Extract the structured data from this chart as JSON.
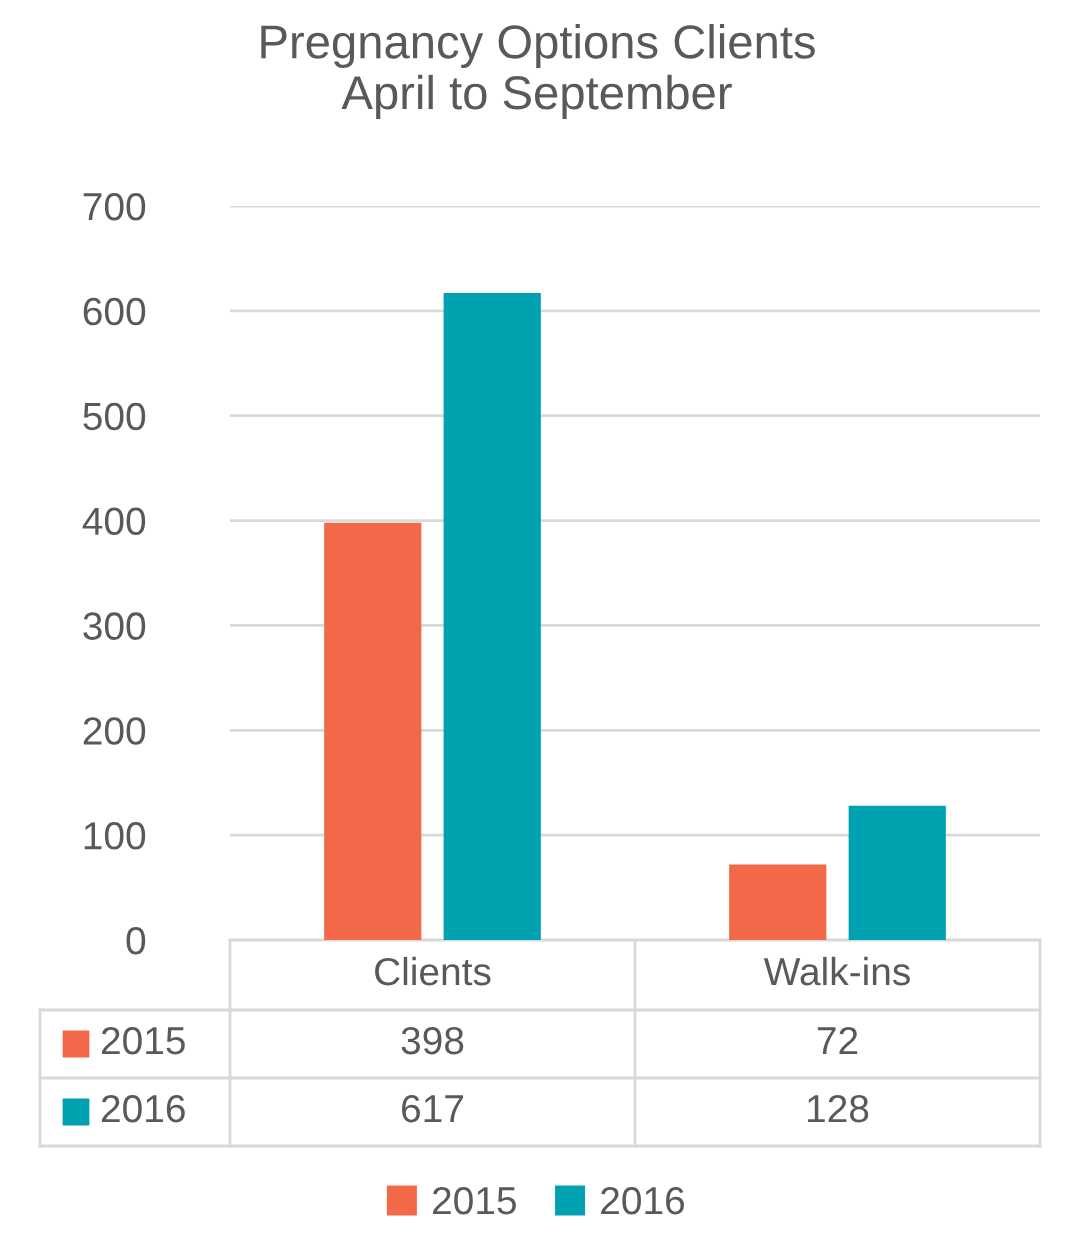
{
  "chart_data": {
    "type": "bar",
    "title": "Pregnancy Options Clients\nApril to September",
    "categories": [
      "Clients",
      "Walk-ins"
    ],
    "series": [
      {
        "name": "2015",
        "color": "#f26849",
        "values": [
          398,
          72
        ]
      },
      {
        "name": "2016",
        "color": "#00a2b1",
        "values": [
          617,
          128
        ]
      }
    ],
    "ylim": [
      0,
      700
    ],
    "yticks": [
      0,
      100,
      200,
      300,
      400,
      500,
      600,
      700
    ],
    "grid": "y",
    "legend": "bottom",
    "data_labels": true
  }
}
